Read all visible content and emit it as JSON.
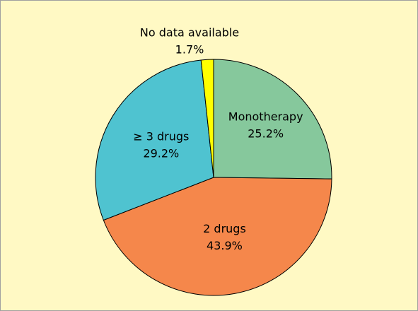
{
  "chart_data": {
    "type": "pie",
    "categories": [
      "Monotherapy",
      "2 drugs",
      "≥ 3 drugs",
      "No data available"
    ],
    "values": [
      25.2,
      43.9,
      29.2,
      1.7
    ],
    "value_labels": [
      "25.2%",
      "43.9%",
      "29.2%",
      "1.7%"
    ],
    "colors": [
      "#86c89c",
      "#f5874b",
      "#4fc3d0",
      "#ffff00"
    ]
  }
}
